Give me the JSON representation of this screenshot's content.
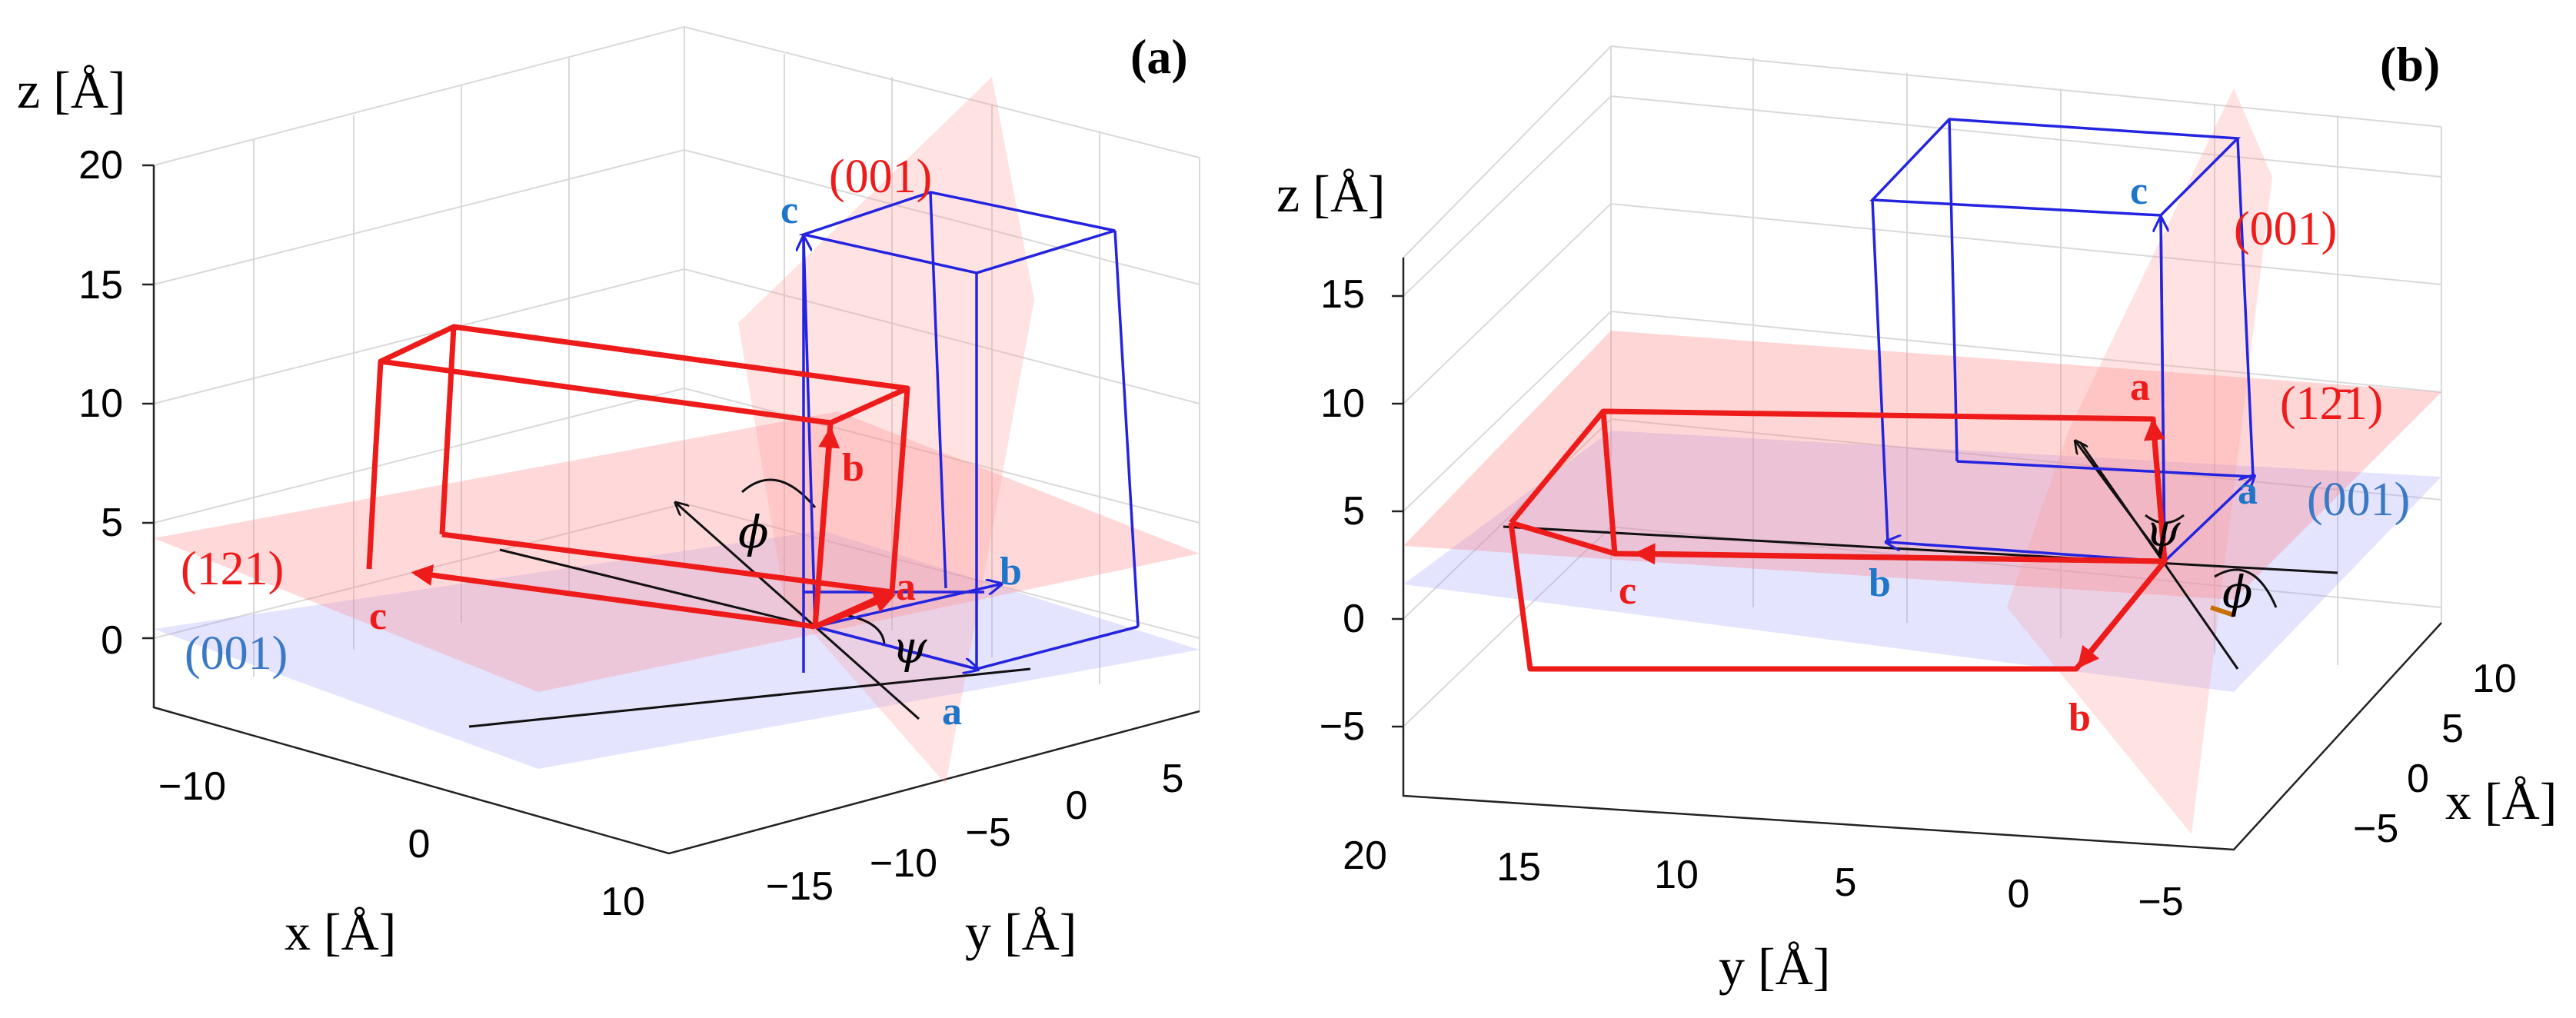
{
  "panel_a": {
    "label": "(a)",
    "z_label": "z [Å]",
    "x_label": "x [Å]",
    "y_label": "y [Å]",
    "z_ticks": [
      "20",
      "15",
      "10",
      "5",
      "0"
    ],
    "x_ticks": [
      "−10",
      "0",
      "10"
    ],
    "y_ticks": [
      "−15",
      "−10",
      "−5",
      "0",
      "5"
    ],
    "plane_red_bottom": "(121)",
    "plane_red_top": "(001)",
    "plane_blue": "(001)",
    "red_vec_a": "a",
    "red_vec_b": "b",
    "red_vec_c": "c",
    "blue_vec_a": "a",
    "blue_vec_b": "b",
    "blue_vec_c": "c",
    "phi": "ϕ",
    "psi": "ψ"
  },
  "panel_b": {
    "label": "(b)",
    "z_label": "z [Å]",
    "x_label": "x [Å]",
    "y_label": "y [Å]",
    "z_ticks": [
      "15",
      "10",
      "5",
      "0",
      "−5"
    ],
    "y_ticks": [
      "20",
      "15",
      "10",
      "5",
      "0",
      "−5"
    ],
    "x_ticks": [
      "10",
      "5",
      "0",
      "−5"
    ],
    "plane_red_top": "(001)",
    "plane_red_mid": "(12̄1)",
    "plane_blue": "(001)",
    "red_vec_a": "a",
    "red_vec_b": "b",
    "red_vec_c": "c",
    "blue_vec_a": "a",
    "blue_vec_b": "b",
    "blue_vec_c": "c",
    "phi": "ϕ",
    "psi": "ψ"
  }
}
